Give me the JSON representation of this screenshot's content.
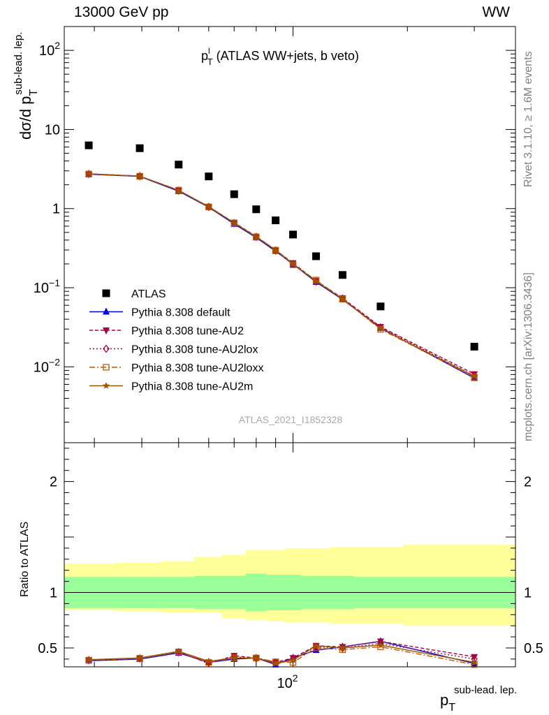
{
  "header": {
    "left": "13000 GeV pp",
    "right": "WW"
  },
  "side_labels": {
    "rivet": "Rivet 3.1.10, ≥ 1.6M events",
    "mcplots": "mcplots.cern.ch [arXiv:1306.3436]"
  },
  "watermark": "ATLAS_2021_I1852328",
  "colors": {
    "atlas": "#000000",
    "default": "#0000dd",
    "au2": "#aa0044",
    "au2lox": "#aa0044",
    "au2loxx": "#cc5500",
    "au2m": "#995500",
    "band_inner": "#99ff99",
    "band_outer": "#ffff99"
  },
  "chart_data": [
    {
      "type": "scatter",
      "title": "p_T^l (ATLAS WW+jets, b veto)",
      "title_parts": {
        "base": "p",
        "sup": "l",
        "sub": "T",
        "rest": " (ATLAS WW+jets, b veto)"
      },
      "ylabel": "dσ/d p_T^{sub-lead. lep.}",
      "ylabel_parts": {
        "base": "dσ/d p",
        "sup": "sub-lead. lep.",
        "sub": "T"
      },
      "yscale": "log",
      "xscale": "log",
      "xlim": [
        25,
        385
      ],
      "ylim": [
        0.0011,
        200
      ],
      "y_ticks": [
        {
          "value": 0.01,
          "label_base": "10",
          "label_exp": "−2"
        },
        {
          "value": 0.1,
          "label_base": "10",
          "label_exp": "−1"
        },
        {
          "value": 1,
          "label_base": "1",
          "label_exp": ""
        },
        {
          "value": 10,
          "label_base": "10",
          "label_exp": ""
        },
        {
          "value": 100,
          "label_base": "10",
          "label_exp": "2"
        }
      ],
      "x": [
        29,
        39.5,
        50,
        60,
        70,
        80,
        90,
        100,
        115,
        135,
        170,
        300
      ],
      "x_edges": [
        25,
        34,
        45,
        55,
        65,
        75,
        85,
        95,
        105,
        125,
        145,
        195,
        385
      ],
      "series": [
        {
          "name": "ATLAS",
          "key": "atlas",
          "marker": "square",
          "dash": "none",
          "values": [
            6.3,
            5.8,
            3.6,
            2.55,
            1.52,
            0.98,
            0.71,
            0.47,
            0.25,
            0.145,
            0.058,
            0.018
          ]
        },
        {
          "name": "Pythia 8.308 default",
          "key": "default",
          "marker": "triangle-up",
          "dash": "none",
          "values": [
            2.72,
            2.55,
            1.66,
            1.04,
            0.64,
            0.43,
            0.29,
            0.198,
            0.118,
            0.071,
            0.031,
            0.0072
          ]
        },
        {
          "name": "Pythia 8.308 tune-AU2",
          "key": "au2",
          "marker": "triangle-down",
          "dash": "5,3",
          "values": [
            2.75,
            2.58,
            1.7,
            1.06,
            0.665,
            0.445,
            0.3,
            0.205,
            0.122,
            0.074,
            0.032,
            0.0081
          ]
        },
        {
          "name": "Pythia 8.308 tune-AU2lox",
          "key": "au2lox",
          "marker": "diamond-open",
          "dash": "2,3",
          "values": [
            2.74,
            2.57,
            1.69,
            1.05,
            0.655,
            0.44,
            0.295,
            0.2,
            0.12,
            0.073,
            0.0315,
            0.0077
          ]
        },
        {
          "name": "Pythia 8.308 tune-AU2loxx",
          "key": "au2loxx",
          "marker": "square-open",
          "dash": "8,3,2,3",
          "values": [
            2.73,
            2.56,
            1.71,
            1.05,
            0.66,
            0.44,
            0.298,
            0.195,
            0.125,
            0.072,
            0.0298,
            0.0074
          ]
        },
        {
          "name": "Pythia 8.308 tune-AU2m",
          "key": "au2m",
          "marker": "star",
          "dash": "none",
          "values": [
            2.76,
            2.57,
            1.7,
            1.06,
            0.66,
            0.44,
            0.3,
            0.2,
            0.121,
            0.072,
            0.0305,
            0.0076
          ]
        }
      ],
      "legend_position": "lower-left"
    },
    {
      "type": "line",
      "ylabel": "Ratio to ATLAS",
      "xlabel": "p_T^{sub-lead. lep.}",
      "xlabel_parts": {
        "base": "p",
        "sup": "sub-lead. lep.",
        "sub": "T"
      },
      "xscale": "log",
      "xlim": [
        25,
        385
      ],
      "ylim": [
        0.33,
        2.35
      ],
      "y_ticks": [
        {
          "value": 0.5,
          "label": "0.5"
        },
        {
          "value": 1,
          "label": "1"
        },
        {
          "value": 2,
          "label": "2"
        }
      ],
      "x_ticks": [
        {
          "value": 100,
          "label_base": "10",
          "label_exp": "2"
        }
      ],
      "x": [
        29,
        39.5,
        50,
        60,
        70,
        80,
        90,
        100,
        115,
        135,
        170,
        300
      ],
      "x_edges": [
        25,
        34,
        45,
        55,
        65,
        75,
        85,
        95,
        105,
        125,
        145,
        195,
        385
      ],
      "bands": {
        "inner_lo": [
          0.86,
          0.86,
          0.86,
          0.85,
          0.85,
          0.83,
          0.84,
          0.84,
          0.85,
          0.85,
          0.86,
          0.86
        ],
        "inner_hi": [
          1.14,
          1.14,
          1.14,
          1.15,
          1.15,
          1.17,
          1.16,
          1.16,
          1.15,
          1.15,
          1.14,
          1.14
        ],
        "outer_lo": [
          0.84,
          0.83,
          0.82,
          0.82,
          0.77,
          0.75,
          0.74,
          0.73,
          0.73,
          0.72,
          0.72,
          0.7
        ],
        "outer_hi": [
          1.26,
          1.27,
          1.28,
          1.32,
          1.34,
          1.38,
          1.38,
          1.4,
          1.4,
          1.41,
          1.41,
          1.43
        ]
      },
      "series": [
        {
          "key": "default",
          "marker": "triangle-up",
          "dash": "none",
          "values": [
            0.385,
            0.4,
            0.455,
            0.37,
            0.4,
            0.41,
            0.35,
            0.41,
            0.48,
            0.51,
            0.56,
            0.36
          ]
        },
        {
          "key": "au2",
          "marker": "triangle-down",
          "dash": "5,3",
          "values": [
            0.39,
            0.41,
            0.465,
            0.36,
            0.43,
            0.41,
            0.37,
            0.41,
            0.52,
            0.51,
            0.56,
            0.42
          ]
        },
        {
          "key": "au2lox",
          "marker": "diamond-open",
          "dash": "2,3",
          "values": [
            0.39,
            0.405,
            0.46,
            0.37,
            0.42,
            0.405,
            0.37,
            0.4,
            0.51,
            0.5,
            0.54,
            0.4
          ]
        },
        {
          "key": "au2loxx",
          "marker": "square-open",
          "dash": "8,3,2,3",
          "values": [
            0.39,
            0.405,
            0.465,
            0.37,
            0.41,
            0.41,
            0.375,
            0.37,
            0.5,
            0.485,
            0.51,
            0.35
          ]
        },
        {
          "key": "au2m",
          "marker": "star",
          "dash": "none",
          "values": [
            0.395,
            0.41,
            0.47,
            0.38,
            0.41,
            0.41,
            0.36,
            0.39,
            0.52,
            0.5,
            0.525,
            0.37
          ]
        }
      ]
    }
  ]
}
